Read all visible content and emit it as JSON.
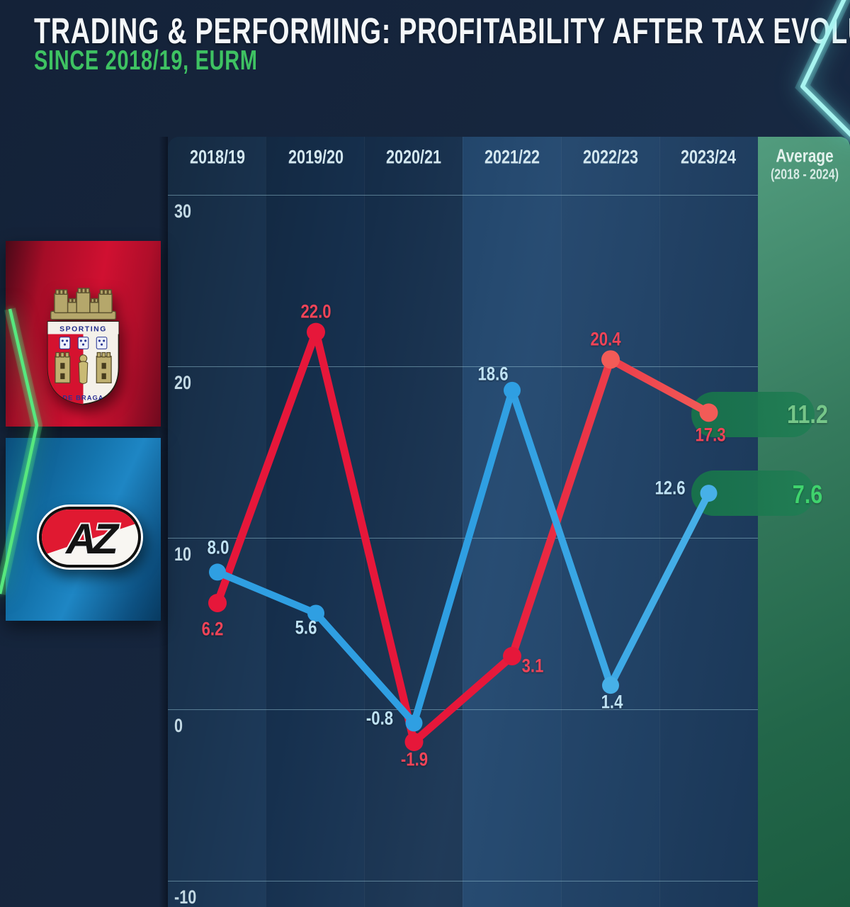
{
  "header": {
    "title": "TRADING & PERFORMING: PROFITABILITY AFTER TAX EVOLUTION",
    "subtitle": "SINCE 2018/19, EURM"
  },
  "clubs": {
    "braga_crest_text": "SPORTING",
    "braga_crest_subtext": "DE BRAGA",
    "az_logo_text": "AZ"
  },
  "chart_data": {
    "type": "line",
    "title": "Profitability after tax evolution since 2018/19 (EURm)",
    "categories": [
      "2018/19",
      "2019/20",
      "2020/21",
      "2021/22",
      "2022/23",
      "2023/24"
    ],
    "series": [
      {
        "name": "SC Braga",
        "color": "#e6173a",
        "color_end": "#f25b57",
        "values": [
          6.2,
          22.0,
          -1.9,
          3.1,
          20.4,
          17.3
        ],
        "labels": [
          "6.2",
          "22.0",
          "-1.9",
          "3.1",
          "20.4",
          "17.3"
        ],
        "average": 11.2,
        "average_label": "11.2",
        "average_color": "#76c689"
      },
      {
        "name": "AZ Alkmaar",
        "color": "#2f9fe2",
        "color_end": "#47b0e8",
        "values": [
          8.0,
          5.6,
          -0.8,
          18.6,
          1.4,
          12.6
        ],
        "labels": [
          "8.0",
          "5.6",
          "-0.8",
          "18.6",
          "1.4",
          "12.6"
        ],
        "average": 7.6,
        "average_label": "7.6",
        "average_color": "#3fd36d"
      }
    ],
    "average_column": {
      "label": "Average",
      "sublabel": "(2018 - 2024)"
    },
    "y_ticks": [
      30,
      20,
      10,
      0,
      -10
    ],
    "y_tick_labels": [
      "30",
      "20",
      "10",
      "0",
      "-10"
    ],
    "ylim": [
      -11.5,
      33.4
    ],
    "grid": true,
    "legend_position": "left-logos",
    "highlight_pill_color": "#17724a"
  }
}
